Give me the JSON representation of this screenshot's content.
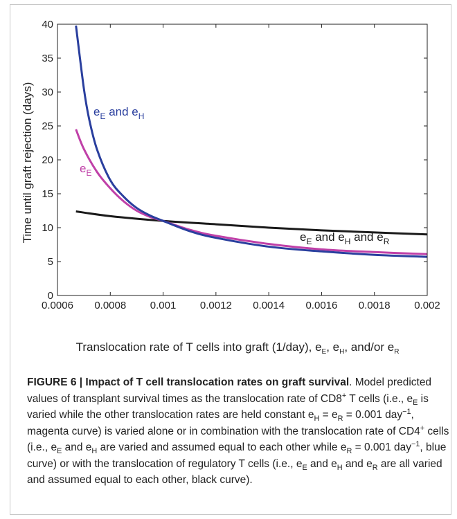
{
  "chart_data": {
    "type": "line",
    "xlabel_text": "Translocation rate of T cells into graft (1/day), e",
    "xlabel_tail": ", and/or e",
    "ylabel": "Time until graft rejection (days)",
    "xlim": [
      0.0006,
      0.002
    ],
    "ylim": [
      0,
      40
    ],
    "xticks": [
      "0.0006",
      "0.0008",
      "0.001",
      "0.0012",
      "0.0014",
      "0.0016",
      "0.0018",
      "0.002"
    ],
    "yticks": [
      "0",
      "5",
      "10",
      "15",
      "20",
      "25",
      "30",
      "35",
      "40"
    ],
    "series": [
      {
        "name": "e_E and e_H",
        "color": "#2a3f9e",
        "x": [
          0.00067,
          0.0007,
          0.00072,
          0.00075,
          0.0008,
          0.00085,
          0.0009,
          0.00095,
          0.001,
          0.0011,
          0.0012,
          0.0014,
          0.0016,
          0.0018,
          0.002
        ],
        "y": [
          39.8,
          30.5,
          26.0,
          21.5,
          17.0,
          14.6,
          12.9,
          11.8,
          11.0,
          9.5,
          8.5,
          7.2,
          6.5,
          6.0,
          5.7
        ]
      },
      {
        "name": "e_E",
        "color": "#c040a8",
        "x": [
          0.00067,
          0.0007,
          0.00075,
          0.0008,
          0.00085,
          0.0009,
          0.00095,
          0.001,
          0.0011,
          0.0012,
          0.0014,
          0.0016,
          0.0018,
          0.002
        ],
        "y": [
          24.5,
          21.6,
          18.2,
          15.8,
          13.9,
          12.5,
          11.6,
          11.0,
          9.7,
          8.8,
          7.6,
          6.8,
          6.4,
          6.1
        ]
      },
      {
        "name": "e_E and e_H and e_R",
        "color": "#1a1a1a",
        "x": [
          0.00067,
          0.0008,
          0.001,
          0.0012,
          0.0014,
          0.0016,
          0.0018,
          0.002
        ],
        "y": [
          12.4,
          11.7,
          11.0,
          10.5,
          10.0,
          9.6,
          9.3,
          9.0
        ]
      }
    ],
    "annotations": {
      "blue": {
        "e": "e",
        "s1": "E",
        "and": " and e",
        "s2": "H"
      },
      "magenta": {
        "e": "e",
        "s1": "E"
      },
      "black": {
        "e": "e",
        "s1": "E",
        "and1": " and e",
        "s2": "H",
        "and2": " and e",
        "s3": "R"
      }
    },
    "subs": {
      "E": "E",
      "H": "H",
      "R": "R",
      "sep": ", e"
    }
  },
  "caption": {
    "lead": "FIGURE 6 | Impact of T cell translocation rates on graft survival",
    "p1": ". Model predicted values of transplant survival times as the translocation rate of CD8",
    "sup_plus": "+",
    "p2": " T cells (i.e., e",
    "sub_E": "E",
    "p3": " is varied while the other translocation rates are held constant e",
    "sub_H": "H",
    "eq1": " = e",
    "sub_R": "R",
    "p4": " = 0.001 day",
    "sup_m1": "−1",
    "p5": ", magenta curve) is varied alone or in combination with the translocation rate of CD4",
    "p6": " cells (i.e., e",
    "p7": " and e",
    "p8": " are varied and assumed equal to each other while e",
    "p9": " = 0.001 day",
    "p10": ", blue curve) or with the translocation of regulatory T cells (i.e., e",
    "p11": " and e",
    "p12": " and e",
    "p13": " are all varied and assumed equal to each other, black curve)."
  }
}
